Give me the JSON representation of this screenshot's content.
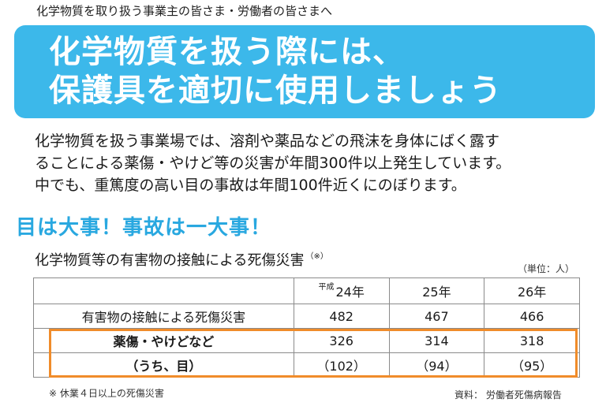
{
  "audience_note": "化学物質を取り扱う事業主の皆さま・労働者の皆さまへ",
  "banner": {
    "line1": "化学物質を扱う際には、",
    "line2": "保護具を適切に使用しましょう"
  },
  "intro": {
    "line1": "化学物質を扱う事業場では、溶剤や薬品などの飛沫を身体にばく露す",
    "line2": "ることによる薬傷・やけど等の災害が年間300件以上発生しています。",
    "line3": "中でも、重篤度の高い目の事故は年間100件近くにのぼります。"
  },
  "headline": "目は大事！事故は一大事！",
  "table": {
    "title": "化学物質等の有害物の接触による死傷災害",
    "title_note": "（※）",
    "unit": "（単位：人）",
    "era_label": "平成",
    "years": [
      "24年",
      "25年",
      "26年"
    ],
    "rows": [
      {
        "label": "有害物の接触による死傷災害",
        "values": [
          "482",
          "467",
          "466"
        ]
      },
      {
        "label": "薬傷・やけどなど",
        "values": [
          "326",
          "314",
          "318"
        ]
      },
      {
        "label": "（うち、目）",
        "values": [
          "（102）",
          "（94）",
          "（95）"
        ]
      }
    ]
  },
  "footnote": "※ 休業４日以上の死傷災害",
  "source": "資料：  労働者死傷病報告",
  "colors": {
    "banner_bg": "#3cb8ea",
    "headline": "#29a8e0",
    "highlight_border": "#f08c2a"
  }
}
